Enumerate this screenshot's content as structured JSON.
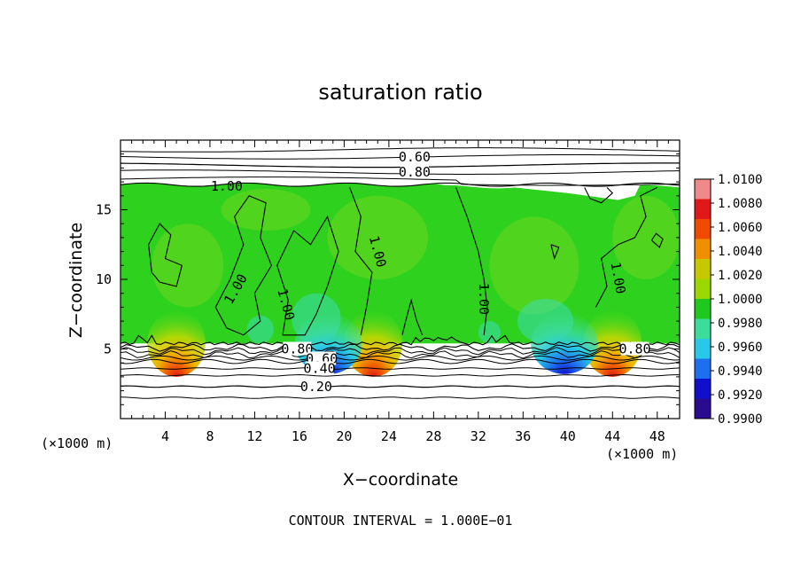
{
  "chart_data": {
    "type": "heatmap",
    "title": "saturation ratio",
    "xlabel": "X−coordinate",
    "ylabel": "Z−coordinate",
    "x_unit_left": "(×1000 m)",
    "x_unit_right": "(×1000 m)",
    "xlim": [
      0,
      50
    ],
    "ylim": [
      0,
      20
    ],
    "x_ticks": [
      4,
      8,
      12,
      16,
      20,
      24,
      28,
      32,
      36,
      40,
      44,
      48
    ],
    "y_ticks": [
      5,
      10,
      15
    ],
    "footer": "CONTOUR INTERVAL = 1.000E−01",
    "colorbar": {
      "labels": [
        "1.0100",
        "1.0080",
        "1.0060",
        "1.0040",
        "1.0020",
        "1.0000",
        "0.9980",
        "0.9960",
        "0.9940",
        "0.9920",
        "0.9900"
      ],
      "colors": [
        "#f08a8a",
        "#e01818",
        "#f04a00",
        "#f09000",
        "#c8c800",
        "#9ad800",
        "#1ec81e",
        "#3cdc9a",
        "#28c8e6",
        "#1e6ef0",
        "#1010cc",
        "#2a0a8e"
      ]
    },
    "contour_labels": [
      {
        "text": "0.60",
        "x": 26.3,
        "y": 18.8
      },
      {
        "text": "0.80",
        "x": 26.3,
        "y": 17.7
      },
      {
        "text": "1.00",
        "x": 9.5,
        "y": 16.7
      },
      {
        "text": "1.00",
        "x": 10.3,
        "y": 9.3
      },
      {
        "text": "1.00",
        "x": 23.0,
        "y": 12.0
      },
      {
        "text": "1.00",
        "x": 14.8,
        "y": 8.2
      },
      {
        "text": "1.00",
        "x": 32.5,
        "y": 8.6
      },
      {
        "text": "1.00",
        "x": 44.5,
        "y": 10.1
      },
      {
        "text": "0.80",
        "x": 15.8,
        "y": 5.0
      },
      {
        "text": "0.60",
        "x": 18.0,
        "y": 4.3
      },
      {
        "text": "0.40",
        "x": 17.8,
        "y": 3.6
      },
      {
        "text": "0.20",
        "x": 17.5,
        "y": 2.3
      },
      {
        "text": "0.80",
        "x": 46.0,
        "y": 5.0
      }
    ],
    "contour_levels_below_cloud": [
      0.2,
      0.3,
      0.4,
      0.5,
      0.6,
      0.7,
      0.8
    ],
    "contour_levels_above_cloud": [
      0.5,
      0.6,
      0.7,
      0.8,
      0.9
    ],
    "cloud_base_z": 5.4,
    "cloud_top_z": 16.8,
    "dry_patch_top_right": {
      "x_from": 30,
      "x_to": 46,
      "z_from": 15.8,
      "z_to": 16.8
    },
    "hot_spots": [
      {
        "x": 5.0,
        "value": 1.007
      },
      {
        "x": 22.6,
        "value": 1.008
      },
      {
        "x": 44.0,
        "value": 1.007
      }
    ],
    "cold_spots": [
      {
        "x": 18.6,
        "value": 0.992
      },
      {
        "x": 39.7,
        "value": 0.993
      }
    ]
  }
}
